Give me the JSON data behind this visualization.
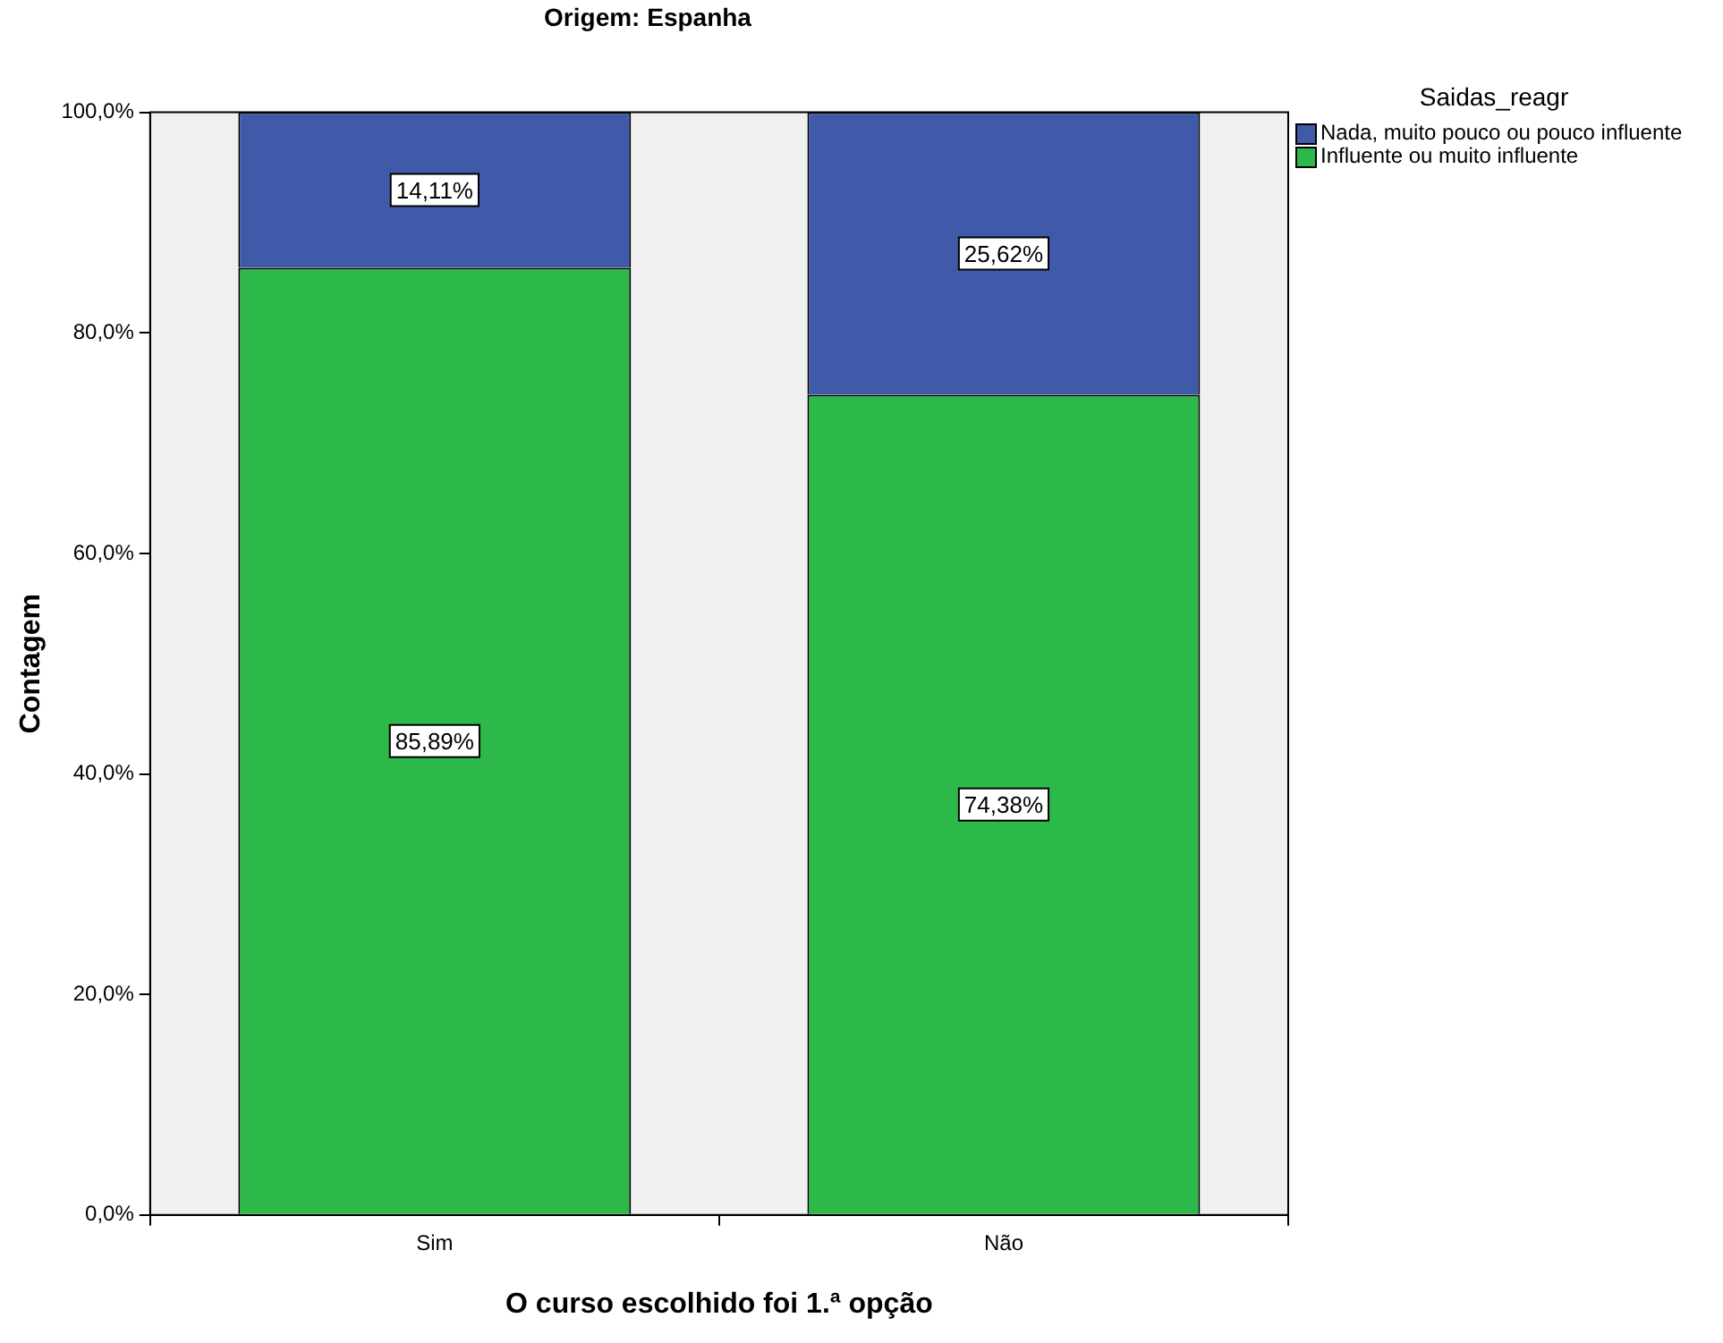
{
  "chart_data": {
    "type": "bar",
    "stacked": true,
    "title": "Origem: Espanha",
    "xlabel": "O curso escolhido foi 1.ª opção",
    "ylabel": "Contagem",
    "legend_title": "Saidas_reagr",
    "legend": "right",
    "categories": [
      "Sim",
      "Não"
    ],
    "series": [
      {
        "name": "Influente ou muito influente",
        "color": "#2db84a",
        "values": [
          85.89,
          74.38
        ],
        "value_labels": [
          "85,89%",
          "74,38%"
        ]
      },
      {
        "name": "Nada, muito pouco ou pouco influente",
        "color": "#3f5aa8",
        "values": [
          14.11,
          25.62
        ],
        "value_labels": [
          "14,11%",
          "25,62%"
        ]
      }
    ],
    "ylim": [
      0,
      100
    ],
    "yticks": [
      {
        "value": 0,
        "label": "0,0%"
      },
      {
        "value": 20,
        "label": "20,0%"
      },
      {
        "value": 40,
        "label": "40,0%"
      },
      {
        "value": 60,
        "label": "60,0%"
      },
      {
        "value": 80,
        "label": "80,0%"
      },
      {
        "value": 100,
        "label": "100,0%"
      }
    ]
  }
}
